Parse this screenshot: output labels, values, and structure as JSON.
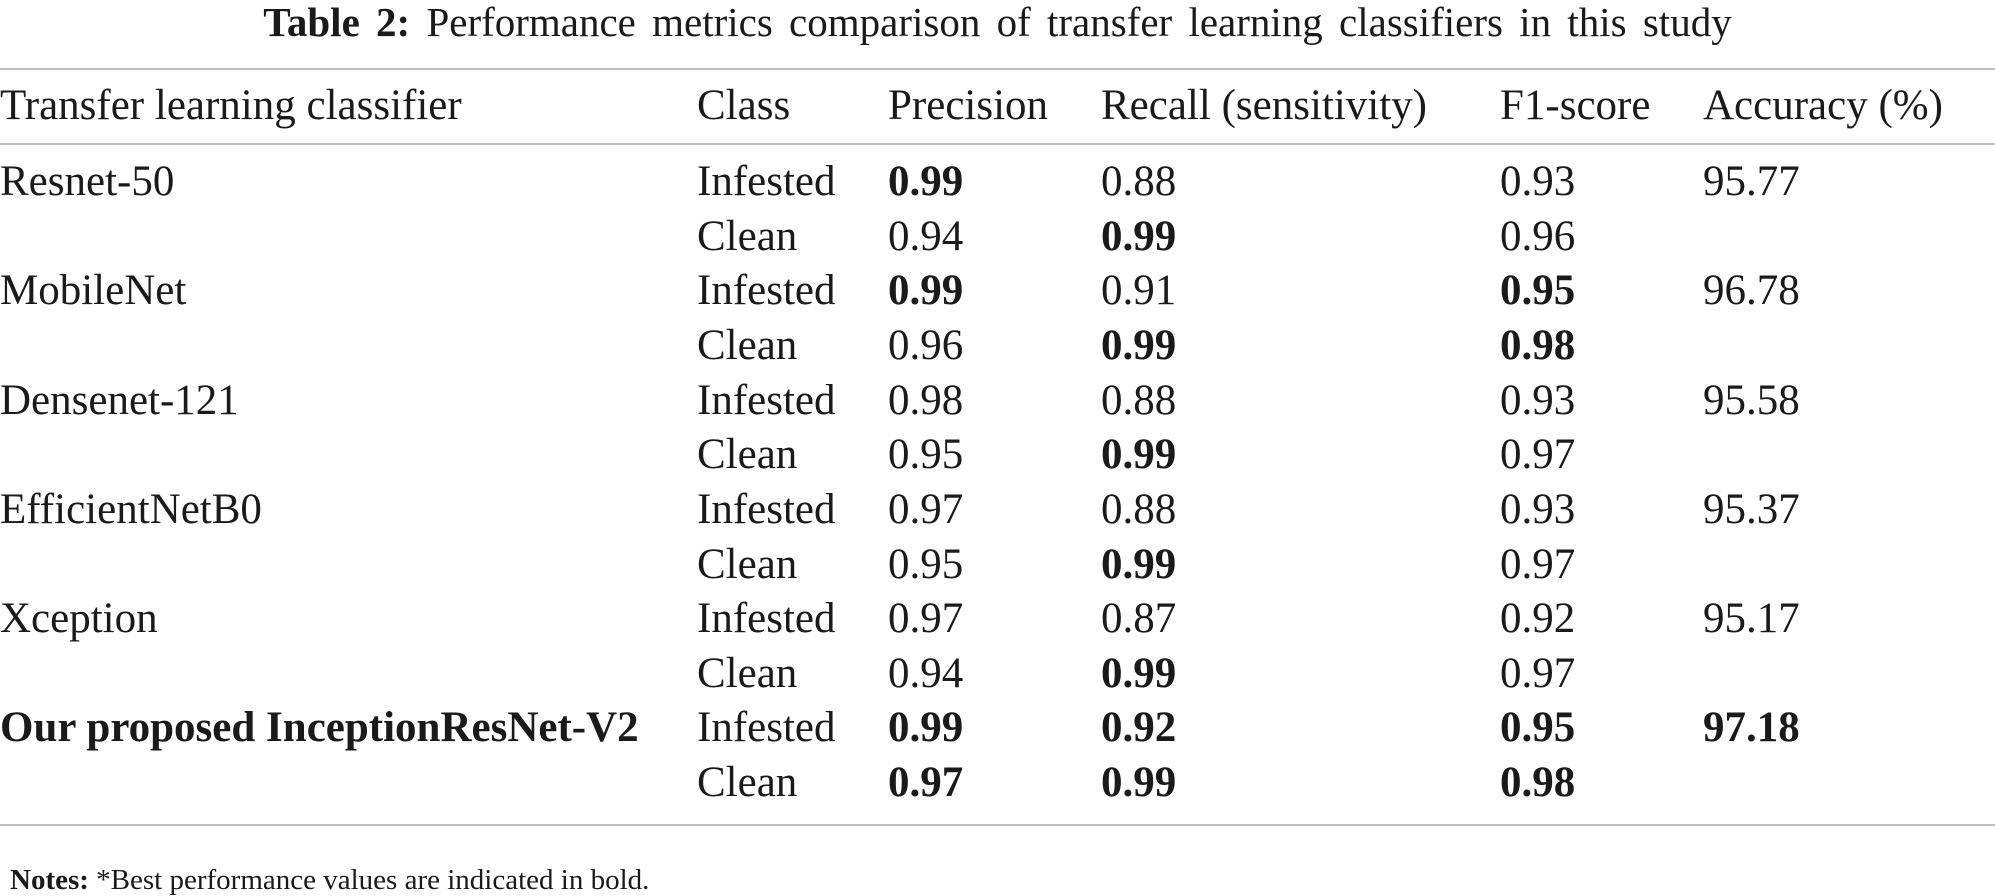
{
  "caption": {
    "label": "Table 2:",
    "text": "Performance metrics comparison of transfer learning classifiers in this study"
  },
  "headers": [
    "Transfer learning classifier",
    "Class",
    "Precision",
    "Recall (sensitivity)",
    "F1-score",
    "Accuracy (%)"
  ],
  "rows": [
    {
      "classifier": "Resnet-50",
      "class": "Infested",
      "precision": "0.99",
      "recall": "0.88",
      "f1": "0.93",
      "accuracy": "95.77",
      "bold": {
        "classifier": false,
        "precision": true,
        "recall": false,
        "f1": false,
        "accuracy": false
      }
    },
    {
      "classifier": "",
      "class": "Clean",
      "precision": "0.94",
      "recall": "0.99",
      "f1": "0.96",
      "accuracy": "",
      "bold": {
        "classifier": false,
        "precision": false,
        "recall": true,
        "f1": false,
        "accuracy": false
      }
    },
    {
      "classifier": "MobileNet",
      "class": "Infested",
      "precision": "0.99",
      "recall": "0.91",
      "f1": "0.95",
      "accuracy": "96.78",
      "bold": {
        "classifier": false,
        "precision": true,
        "recall": false,
        "f1": true,
        "accuracy": false
      }
    },
    {
      "classifier": "",
      "class": "Clean",
      "precision": "0.96",
      "recall": "0.99",
      "f1": "0.98",
      "accuracy": "",
      "bold": {
        "classifier": false,
        "precision": false,
        "recall": true,
        "f1": true,
        "accuracy": false
      }
    },
    {
      "classifier": "Densenet-121",
      "class": "Infested",
      "precision": "0.98",
      "recall": "0.88",
      "f1": "0.93",
      "accuracy": "95.58",
      "bold": {
        "classifier": false,
        "precision": false,
        "recall": false,
        "f1": false,
        "accuracy": false
      }
    },
    {
      "classifier": "",
      "class": "Clean",
      "precision": "0.95",
      "recall": "0.99",
      "f1": "0.97",
      "accuracy": "",
      "bold": {
        "classifier": false,
        "precision": false,
        "recall": true,
        "f1": false,
        "accuracy": false
      }
    },
    {
      "classifier": "EfficientNetB0",
      "class": "Infested",
      "precision": "0.97",
      "recall": "0.88",
      "f1": "0.93",
      "accuracy": "95.37",
      "bold": {
        "classifier": false,
        "precision": false,
        "recall": false,
        "f1": false,
        "accuracy": false
      }
    },
    {
      "classifier": "",
      "class": "Clean",
      "precision": "0.95",
      "recall": "0.99",
      "f1": "0.97",
      "accuracy": "",
      "bold": {
        "classifier": false,
        "precision": false,
        "recall": true,
        "f1": false,
        "accuracy": false
      }
    },
    {
      "classifier": "Xception",
      "class": "Infested",
      "precision": "0.97",
      "recall": "0.87",
      "f1": "0.92",
      "accuracy": "95.17",
      "bold": {
        "classifier": false,
        "precision": false,
        "recall": false,
        "f1": false,
        "accuracy": false
      }
    },
    {
      "classifier": "",
      "class": "Clean",
      "precision": "0.94",
      "recall": "0.99",
      "f1": "0.97",
      "accuracy": "",
      "bold": {
        "classifier": false,
        "precision": false,
        "recall": true,
        "f1": false,
        "accuracy": false
      }
    },
    {
      "classifier": "Our proposed InceptionResNet-V2",
      "class": "Infested",
      "precision": "0.99",
      "recall": "0.92",
      "f1": "0.95",
      "accuracy": "97.18",
      "bold": {
        "classifier": true,
        "precision": true,
        "recall": true,
        "f1": true,
        "accuracy": true
      }
    },
    {
      "classifier": "",
      "class": "Clean",
      "precision": "0.97",
      "recall": "0.99",
      "f1": "0.98",
      "accuracy": "",
      "bold": {
        "classifier": false,
        "precision": true,
        "recall": true,
        "f1": true,
        "accuracy": false
      }
    }
  ],
  "notes": {
    "label": "Notes:",
    "text": "*Best performance values are indicated in bold."
  }
}
